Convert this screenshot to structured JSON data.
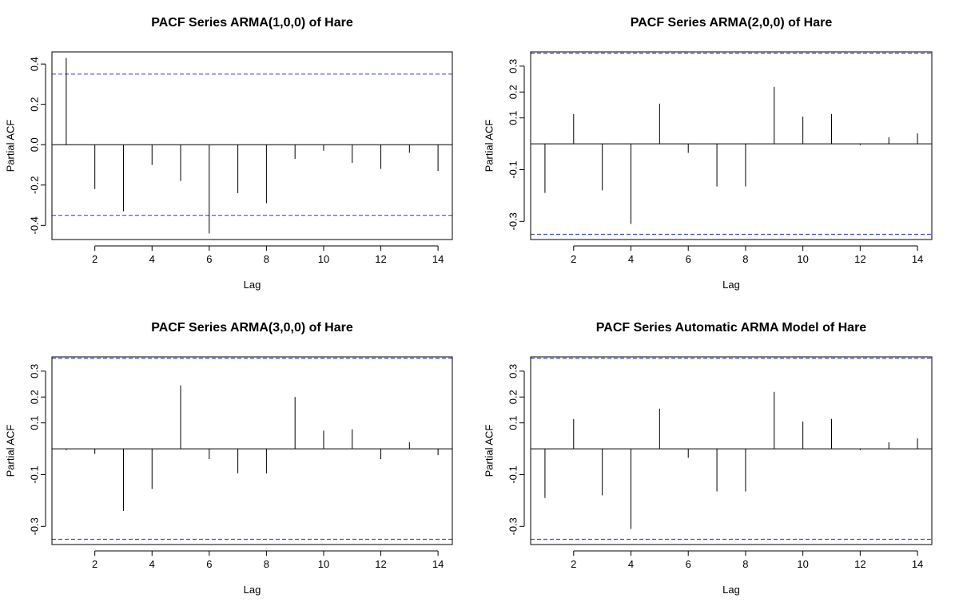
{
  "chart_data": [
    {
      "type": "bar",
      "title": "PACF Series ARMA(1,0,0) of Hare",
      "xlabel": "Lag",
      "ylabel": "Partial ACF",
      "xlim": [
        0.5,
        14.5
      ],
      "ylim": [
        -0.47,
        0.46
      ],
      "xticks": [
        2,
        4,
        6,
        8,
        10,
        12,
        14
      ],
      "yticks": [
        -0.4,
        -0.2,
        0.0,
        0.2,
        0.4
      ],
      "ytick_labels": [
        "-0.4",
        "-0.2",
        "0.0",
        "0.2",
        "0.4"
      ],
      "ci": 0.35,
      "ci_color": "#4b4bd6",
      "lags": [
        1,
        2,
        3,
        4,
        5,
        6,
        7,
        8,
        9,
        10,
        11,
        12,
        13,
        14
      ],
      "values": [
        0.43,
        -0.22,
        -0.33,
        -0.1,
        -0.18,
        -0.44,
        -0.24,
        -0.29,
        -0.07,
        -0.03,
        -0.09,
        -0.12,
        -0.04,
        -0.13
      ]
    },
    {
      "type": "bar",
      "title": "PACF Series ARMA(2,0,0) of Hare",
      "xlabel": "Lag",
      "ylabel": "Partial ACF",
      "xlim": [
        0.5,
        14.5
      ],
      "ylim": [
        -0.37,
        0.355
      ],
      "xticks": [
        2,
        4,
        6,
        8,
        10,
        12,
        14
      ],
      "yticks": [
        -0.3,
        -0.1,
        0.1,
        0.2,
        0.3
      ],
      "ytick_labels": [
        "-0.3",
        "-0.1",
        "0.1",
        "0.2",
        "0.3"
      ],
      "ci": 0.35,
      "ci_color": "#4b4bd6",
      "lags": [
        1,
        2,
        3,
        4,
        5,
        6,
        7,
        8,
        9,
        10,
        11,
        12,
        13,
        14
      ],
      "values": [
        -0.19,
        0.115,
        -0.18,
        -0.31,
        0.155,
        -0.035,
        -0.165,
        -0.165,
        0.22,
        0.105,
        0.115,
        -0.005,
        0.025,
        0.04
      ]
    },
    {
      "type": "bar",
      "title": "PACF Series ARMA(3,0,0) of Hare",
      "xlabel": "Lag",
      "ylabel": "Partial ACF",
      "xlim": [
        0.5,
        14.5
      ],
      "ylim": [
        -0.37,
        0.355
      ],
      "xticks": [
        2,
        4,
        6,
        8,
        10,
        12,
        14
      ],
      "yticks": [
        -0.3,
        -0.1,
        0.1,
        0.2,
        0.3
      ],
      "ytick_labels": [
        "-0.3",
        "-0.1",
        "0.1",
        "0.2",
        "0.3"
      ],
      "ci": 0.35,
      "ci_color": "#4b4bd6",
      "lags": [
        1,
        2,
        3,
        4,
        5,
        6,
        7,
        8,
        9,
        10,
        11,
        12,
        13,
        14
      ],
      "values": [
        -0.005,
        -0.02,
        -0.24,
        -0.155,
        0.245,
        -0.04,
        -0.095,
        -0.095,
        0.2,
        0.07,
        0.075,
        -0.04,
        0.025,
        -0.025
      ]
    },
    {
      "type": "bar",
      "title": "PACF Series Automatic ARMA Model of Hare",
      "xlabel": "Lag",
      "ylabel": "Partial ACF",
      "xlim": [
        0.5,
        14.5
      ],
      "ylim": [
        -0.37,
        0.355
      ],
      "xticks": [
        2,
        4,
        6,
        8,
        10,
        12,
        14
      ],
      "yticks": [
        -0.3,
        -0.1,
        0.1,
        0.2,
        0.3
      ],
      "ytick_labels": [
        "-0.3",
        "-0.1",
        "0.1",
        "0.2",
        "0.3"
      ],
      "ci": 0.35,
      "ci_color": "#4b4bd6",
      "lags": [
        1,
        2,
        3,
        4,
        5,
        6,
        7,
        8,
        9,
        10,
        11,
        12,
        13,
        14
      ],
      "values": [
        -0.19,
        0.115,
        -0.18,
        -0.31,
        0.155,
        -0.035,
        -0.165,
        -0.165,
        0.22,
        0.105,
        0.115,
        -0.005,
        0.025,
        0.04
      ]
    }
  ]
}
